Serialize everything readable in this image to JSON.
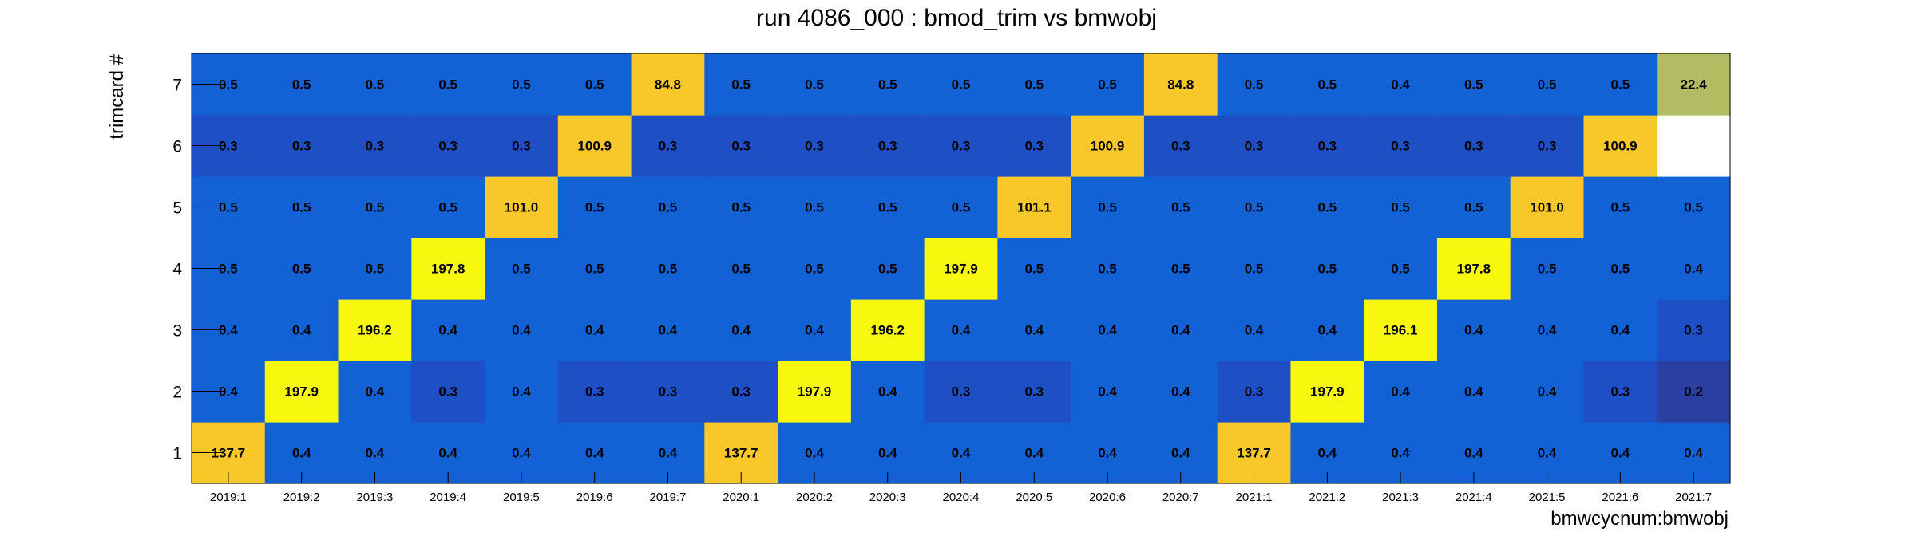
{
  "chart_data": {
    "type": "heatmap",
    "title": "run 4086_000 : bmod_trim vs bmwobj",
    "xlabel": "bmwcycnum:bmwobj",
    "ylabel": "trimcard #",
    "x_categories": [
      "2019:1",
      "2019:2",
      "2019:3",
      "2019:4",
      "2019:5",
      "2019:6",
      "2019:7",
      "2020:1",
      "2020:2",
      "2020:3",
      "2020:4",
      "2020:5",
      "2020:6",
      "2020:7",
      "2021:1",
      "2021:2",
      "2021:3",
      "2021:4",
      "2021:5",
      "2021:6",
      "2021:7"
    ],
    "y_categories": [
      "1",
      "2",
      "3",
      "4",
      "5",
      "6",
      "7"
    ],
    "values": [
      [
        137.7,
        0.4,
        0.4,
        0.4,
        0.4,
        0.4,
        0.4,
        137.7,
        0.4,
        0.4,
        0.4,
        0.4,
        0.4,
        0.4,
        137.7,
        0.4,
        0.4,
        0.4,
        0.4,
        0.4,
        0.4
      ],
      [
        0.4,
        197.9,
        0.4,
        0.3,
        0.4,
        0.3,
        0.3,
        0.3,
        197.9,
        0.4,
        0.3,
        0.3,
        0.4,
        0.4,
        0.3,
        197.9,
        0.4,
        0.4,
        0.4,
        0.3,
        0.2
      ],
      [
        0.4,
        0.4,
        196.2,
        0.4,
        0.4,
        0.4,
        0.4,
        0.4,
        0.4,
        196.2,
        0.4,
        0.4,
        0.4,
        0.4,
        0.4,
        0.4,
        196.1,
        0.4,
        0.4,
        0.4,
        0.3
      ],
      [
        0.5,
        0.5,
        0.5,
        197.8,
        0.5,
        0.5,
        0.5,
        0.5,
        0.5,
        0.5,
        197.9,
        0.5,
        0.5,
        0.5,
        0.5,
        0.5,
        0.5,
        197.8,
        0.5,
        0.5,
        0.4
      ],
      [
        0.5,
        0.5,
        0.5,
        0.5,
        101.0,
        0.5,
        0.5,
        0.5,
        0.5,
        0.5,
        0.5,
        101.1,
        0.5,
        0.5,
        0.5,
        0.5,
        0.5,
        0.5,
        101.0,
        0.5,
        0.5
      ],
      [
        0.3,
        0.3,
        0.3,
        0.3,
        0.3,
        100.9,
        0.3,
        0.3,
        0.3,
        0.3,
        0.3,
        0.3,
        100.9,
        0.3,
        0.3,
        0.3,
        0.3,
        0.3,
        0.3,
        100.9,
        null
      ],
      [
        0.5,
        0.5,
        0.5,
        0.5,
        0.5,
        0.5,
        84.8,
        0.5,
        0.5,
        0.5,
        0.5,
        0.5,
        0.5,
        84.8,
        0.5,
        0.5,
        0.4,
        0.5,
        0.5,
        0.5,
        22.4
      ]
    ],
    "value_format": "1 decimal",
    "colors": {
      "very_low": "#2a3fa0",
      "low": "#1f4fc4",
      "base": "#1262d6",
      "olive": "#b3bb63",
      "orange": "#f8c72a",
      "yellow": "#f8f80f",
      "empty": "#ffffff"
    },
    "legend": "none",
    "grid": false
  }
}
